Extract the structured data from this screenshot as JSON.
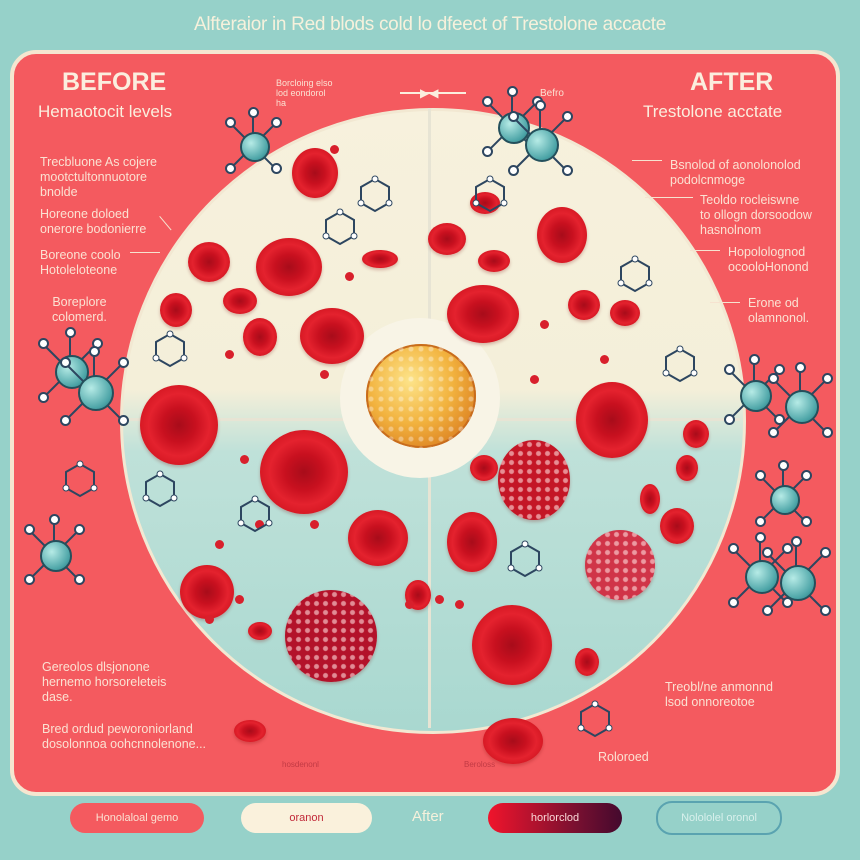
{
  "title": "Alfteraior in Red blods cold lo dfeect of Trestolone  accacte",
  "colors": {
    "background": "#96d1c9",
    "panel": "#f45a5f",
    "cell": "#d8202c",
    "core": "#f2b33f"
  },
  "before": {
    "heading": "BEFORE",
    "subheading": "Hemaotocit levels"
  },
  "after": {
    "heading": "AFTER",
    "subheading": "Trestolone acctate"
  },
  "top_labels": {
    "center_note": "Borcloing elso\nlod eondorol\nha",
    "arrow_note": "Befro"
  },
  "left_labels": [
    "Trecbluone As cojere\nmootctultonnuotore\nbnolde",
    "Horeone doloed\nonerore bodonierre",
    "Boreone coolo\nHotoleloteone",
    "Boreplore\ncolomerd."
  ],
  "right_labels": [
    "Bsnolod of aonolonolod\npodolcnmoge",
    "Teoldo rocleiswne\nto ollogn dorsoodow\nhasnolnom",
    "Hopololognod\nocooloHonond",
    "Erone od\nolamnonol."
  ],
  "bottom_left_labels": [
    "Gereolos dlsjonone\nhernemo horsoreleteis\ndase.",
    "Bred ordud peworoniorland\ndosolonnoa oohcnnolenone..."
  ],
  "bottom_right_labels": [
    "Treobl/ne anmonnd\nlsod onnoreotoe",
    "Roloroed"
  ],
  "inner_labels": [
    "hosdenonl",
    "Beroloss"
  ],
  "legend": {
    "items": [
      "Honolaloal gemo",
      "oranon",
      "horlorclod",
      "Nolololel oronol"
    ],
    "after_label": "After"
  }
}
